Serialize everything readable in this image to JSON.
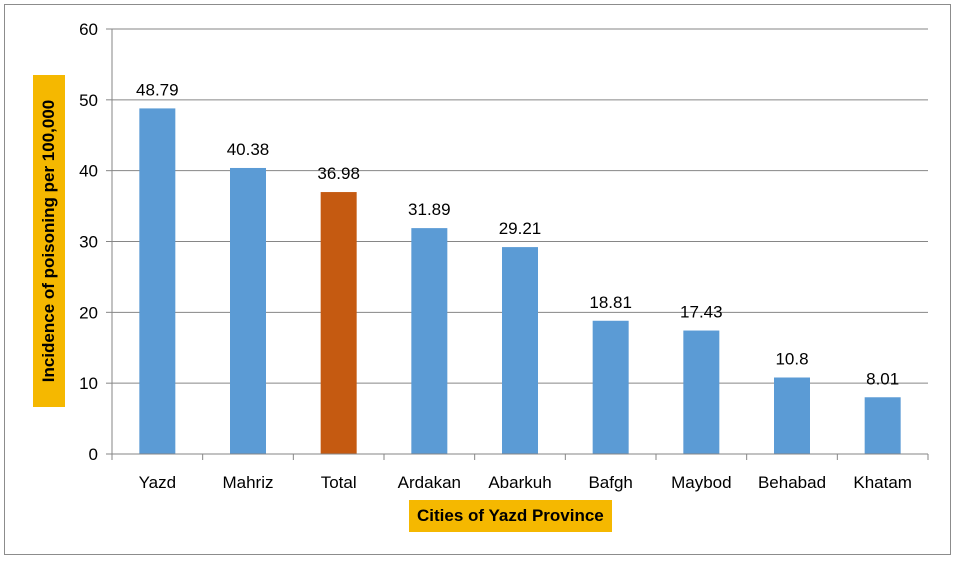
{
  "chart_data": {
    "type": "bar",
    "title": "",
    "xlabel": "Cities of Yazd Province",
    "ylabel": "Incidence of poisoning per 100,000",
    "categories": [
      "Yazd",
      "Mahriz",
      "Total",
      "Ardakan",
      "Abarkuh",
      "Bafgh",
      "Maybod",
      "Behabad",
      "Khatam"
    ],
    "values": [
      48.79,
      40.38,
      36.98,
      31.89,
      29.21,
      18.81,
      17.43,
      10.8,
      8.01
    ],
    "value_labels": [
      "48.79",
      "40.38",
      "36.98",
      "31.89",
      "29.21",
      "18.81",
      "17.43",
      "10.8",
      "8.01"
    ],
    "ylim": [
      0,
      60
    ],
    "yticks": [
      0,
      10,
      20,
      30,
      40,
      50,
      60
    ],
    "grid": true,
    "legend": "none",
    "colors": {
      "bar": "#5b9bd5",
      "highlight_bar": "#c55a11",
      "highlight_category": "Total",
      "label_box": "#f5b800",
      "gridline": "#868686"
    }
  }
}
